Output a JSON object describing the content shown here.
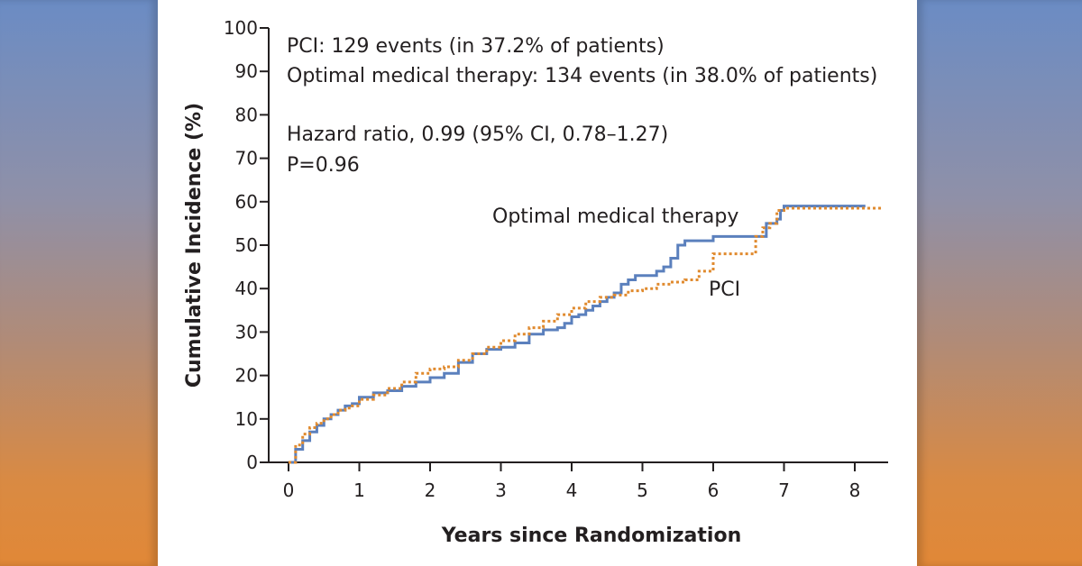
{
  "colors": {
    "optimal_medical_therapy": "#5b80bd",
    "pci": "#e08a2e",
    "axis": "#231f20"
  },
  "chart_data": {
    "type": "line",
    "title": "",
    "xlabel": "Years since Randomization",
    "ylabel": "Cumulative Incidence (%)",
    "xlim": [
      0,
      8.5
    ],
    "ylim": [
      0,
      100
    ],
    "x_ticks": [
      "0",
      "1",
      "2",
      "3",
      "4",
      "5",
      "6",
      "7",
      "8"
    ],
    "y_ticks": [
      "0",
      "10",
      "20",
      "30",
      "40",
      "50",
      "60",
      "70",
      "80",
      "90",
      "100"
    ],
    "annotations": {
      "pci_events": "PCI: 129 events (in 37.2% of patients)",
      "omt_events": "Optimal medical therapy: 134 events (in 38.0% of patients)",
      "hazard_ratio": "Hazard ratio, 0.99 (95% CI, 0.78–1.27)",
      "p_value": "P=0.96"
    },
    "series": [
      {
        "name": "Optimal medical therapy",
        "style": "solid",
        "x": [
          0,
          0.1,
          0.2,
          0.3,
          0.4,
          0.5,
          0.6,
          0.7,
          0.8,
          0.9,
          1.0,
          1.2,
          1.4,
          1.6,
          1.8,
          2.0,
          2.2,
          2.4,
          2.6,
          2.8,
          3.0,
          3.2,
          3.4,
          3.6,
          3.8,
          3.9,
          4.0,
          4.1,
          4.2,
          4.3,
          4.4,
          4.5,
          4.6,
          4.7,
          4.8,
          4.9,
          5.0,
          5.2,
          5.3,
          5.4,
          5.5,
          5.6,
          5.8,
          6.0,
          6.4,
          6.7,
          6.75,
          6.8,
          6.9,
          6.95,
          7.0,
          8.15
        ],
        "y": [
          0,
          3,
          5,
          7,
          8.5,
          10,
          11,
          12,
          13,
          13.5,
          15,
          16,
          16.5,
          17.5,
          18.5,
          19.5,
          20.5,
          23,
          25,
          26,
          26.5,
          27.5,
          29.5,
          30.5,
          31,
          32,
          33.5,
          34,
          35,
          36,
          37,
          38,
          39,
          41,
          42,
          43,
          43,
          44,
          45,
          47,
          50,
          51,
          51,
          52,
          52,
          52,
          55,
          55,
          56,
          58,
          59,
          59
        ]
      },
      {
        "name": "PCI",
        "style": "dotted",
        "x": [
          0,
          0.1,
          0.2,
          0.3,
          0.4,
          0.5,
          0.6,
          0.7,
          0.8,
          0.9,
          1.0,
          1.2,
          1.4,
          1.6,
          1.8,
          2.0,
          2.2,
          2.4,
          2.6,
          2.8,
          3.0,
          3.2,
          3.4,
          3.6,
          3.8,
          4.0,
          4.2,
          4.4,
          4.6,
          4.8,
          5.0,
          5.2,
          5.4,
          5.6,
          5.8,
          6.0,
          6.5,
          6.6,
          6.7,
          6.8,
          6.9,
          7.0,
          8.4
        ],
        "y": [
          0,
          4,
          6.5,
          8,
          9,
          10,
          11,
          12,
          12.5,
          13,
          14.5,
          15.5,
          17,
          18.5,
          20.5,
          21.5,
          22,
          23.5,
          25,
          26.5,
          28,
          29.5,
          31,
          32.5,
          34,
          35.5,
          37,
          38,
          38.5,
          39.5,
          40,
          41,
          41.5,
          42,
          44,
          48,
          48,
          52,
          54,
          55,
          58,
          58.5,
          58.5
        ]
      }
    ],
    "series_labels": {
      "omt": "Optimal medical therapy",
      "pci": "PCI"
    }
  }
}
